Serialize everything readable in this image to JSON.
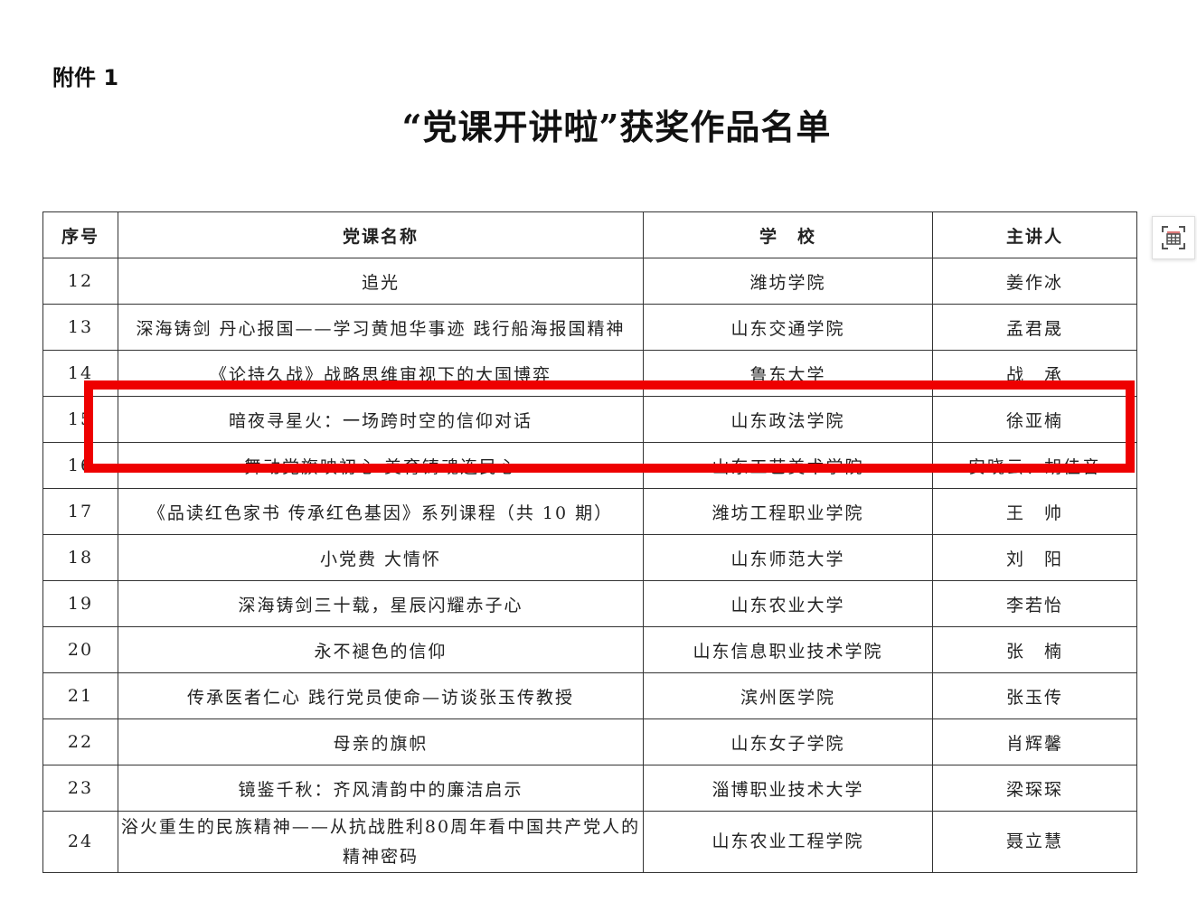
{
  "attachment_label": "附件 1",
  "title": "“党课开讲啦”获奖作品名单",
  "table": {
    "headers": [
      "序号",
      "党课名称",
      "学　校",
      "主讲人"
    ],
    "rows": [
      [
        "12",
        "追光",
        "潍坊学院",
        "姜作冰"
      ],
      [
        "13",
        "深海铸剑 丹心报国——学习黄旭华事迹 践行船海报国精神",
        "山东交通学院",
        "孟君晟"
      ],
      [
        "14",
        "《论持久战》战略思维审视下的大国博弈",
        "鲁东大学",
        "战　承"
      ],
      [
        "15",
        "暗夜寻星火：一场跨时空的信仰对话",
        "山东政法学院",
        "徐亚楠"
      ],
      [
        "16",
        "舞动党旗映初心 美育铸魂连民心",
        "山东工艺美术学院",
        "安晓云、胡佳音"
      ],
      [
        "17",
        "《品读红色家书 传承红色基因》系列课程（共 10 期）",
        "潍坊工程职业学院",
        "王　帅"
      ],
      [
        "18",
        "小党费 大情怀",
        "山东师范大学",
        "刘　阳"
      ],
      [
        "19",
        "深海铸剑三十载，星辰闪耀赤子心",
        "山东农业大学",
        "李若怡"
      ],
      [
        "20",
        "永不褪色的信仰",
        "山东信息职业技术学院",
        "张　楠"
      ],
      [
        "21",
        "传承医者仁心 践行党员使命—访谈张玉传教授",
        "滨州医学院",
        "张玉传"
      ],
      [
        "22",
        "母亲的旗帜",
        "山东女子学院",
        "肖辉馨"
      ],
      [
        "23",
        "镜鉴千秋：齐风清韵中的廉洁启示",
        "淄博职业技术大学",
        "梁琛琛"
      ],
      [
        "24",
        "浴火重生的民族精神——从抗战胜利80周年看中国共产党人的精神密码",
        "山东农业工程学院",
        "聂立慧"
      ]
    ]
  },
  "highlight_color": "#ee0000",
  "fullscreen_icon": "table-fullscreen-icon"
}
